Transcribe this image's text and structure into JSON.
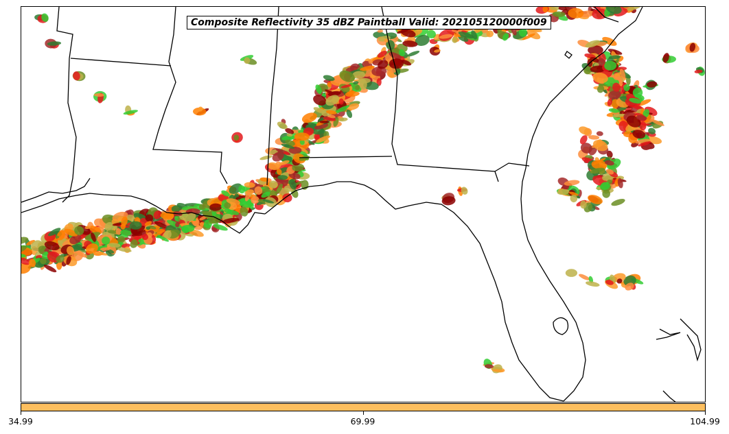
{
  "title": "Composite Reflectivity 35 dBZ Paintball Valid: 202105120000f009",
  "colorbar": {
    "color": "#fdbf5f",
    "ticks": [
      {
        "value": 34.99,
        "label": "34.99"
      },
      {
        "value": 69.99,
        "label": "69.99"
      },
      {
        "value": 104.99,
        "label": "104.99"
      }
    ],
    "range": [
      34.99,
      104.99
    ]
  },
  "paintball_colors": [
    "#e31a1c",
    "#ff7f00",
    "#33cc33",
    "#fb9a29",
    "#8b0000",
    "#6b8e23",
    "#2e7d32",
    "#a52a2a",
    "#bdb24a",
    "#fd8d3c"
  ],
  "map": {
    "land_color": "#ffffff",
    "line_color": "#000000",
    "features": [
      "coastline",
      "state-borders"
    ]
  }
}
